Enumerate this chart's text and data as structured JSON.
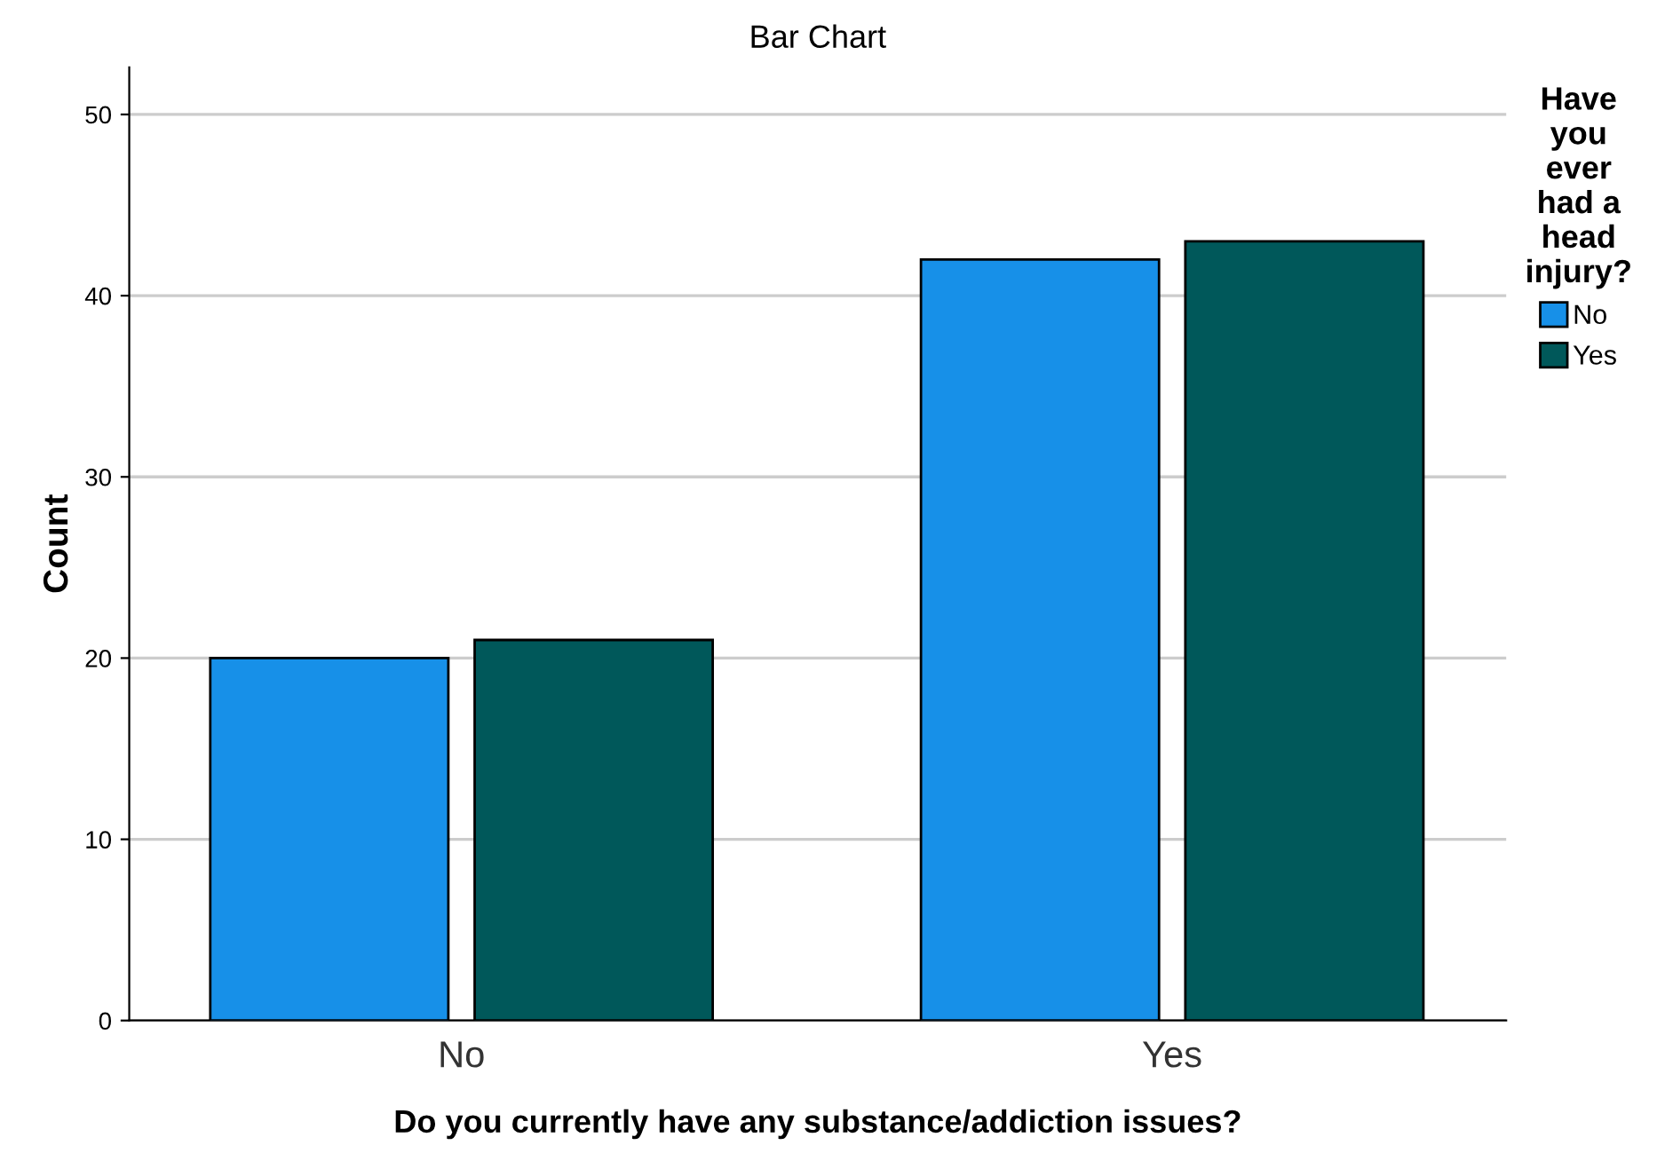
{
  "chart_data": {
    "type": "bar",
    "title": "Bar Chart",
    "xlabel": "Do you currently have any substance/addiction issues?",
    "ylabel": "Count",
    "legend_title": "Have\nyou\never\nhad a\nhead\ninjury?",
    "categories": [
      "No",
      "Yes"
    ],
    "series": [
      {
        "name": "No",
        "color": "#1790e8",
        "values": [
          20,
          42
        ]
      },
      {
        "name": "Yes",
        "color": "#00585a",
        "values": [
          21,
          43
        ]
      }
    ],
    "ylim": [
      0,
      52.6
    ],
    "yticks": [
      0,
      10,
      20,
      30,
      40,
      50
    ],
    "grid": "y",
    "legend": "top right"
  }
}
